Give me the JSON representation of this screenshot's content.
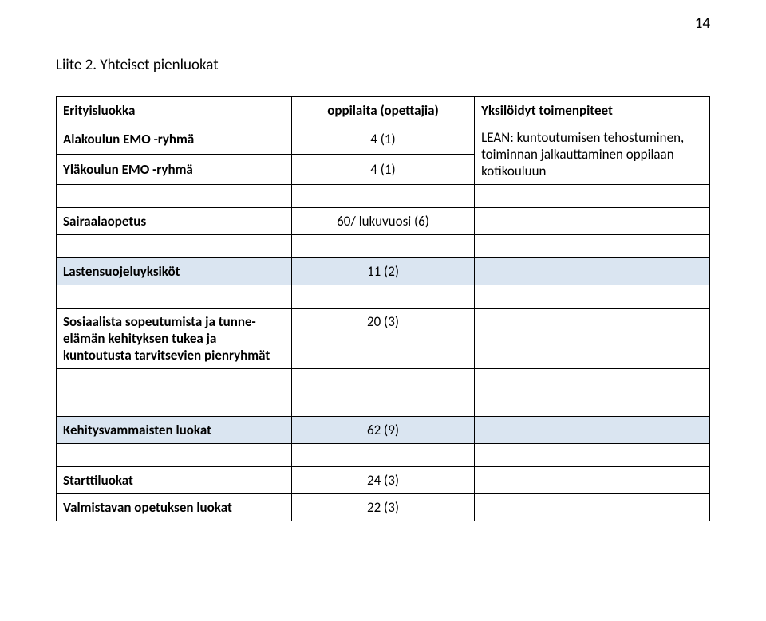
{
  "pageNumber": "14",
  "title": "Liite 2. Yhteiset pienluokat",
  "header": {
    "col1": "Erityisluokka",
    "col2": "oppilaita (opettajia)",
    "col3": "Yksilöidyt toimenpiteet"
  },
  "rows": {
    "r1": {
      "label": "Alakoulun EMO -ryhmä",
      "value": "4 (1)",
      "note": "LEAN: kuntoutumisen tehostuminen, toiminnan jalkauttaminen oppilaan kotikouluun"
    },
    "r2": {
      "label": "Yläkoulun EMO -ryhmä",
      "value": "4 (1)",
      "note": ""
    },
    "r3": {
      "label": "Sairaalaopetus",
      "value": "60/ lukuvuosi (6)",
      "note": ""
    },
    "r4": {
      "label": "Lastensuojeluyksiköt",
      "value": "11 (2)",
      "note": ""
    },
    "r5": {
      "label": "Sosiaalista sopeutumista ja tunne-elämän kehityksen tukea ja kuntoutusta tarvitsevien pienryhmät",
      "value": "20 (3)",
      "note": ""
    },
    "r6": {
      "label": "Kehitysvammaisten luokat",
      "value": "62 (9)",
      "note": ""
    },
    "r7": {
      "label": "Starttiluokat",
      "value": "24 (3)",
      "note": ""
    },
    "r8": {
      "label": "Valmistavan opetuksen luokat",
      "value": "22 (3)",
      "note": ""
    }
  },
  "colors": {
    "shaded": "#dae5f1",
    "border": "#000000",
    "background": "#ffffff"
  }
}
